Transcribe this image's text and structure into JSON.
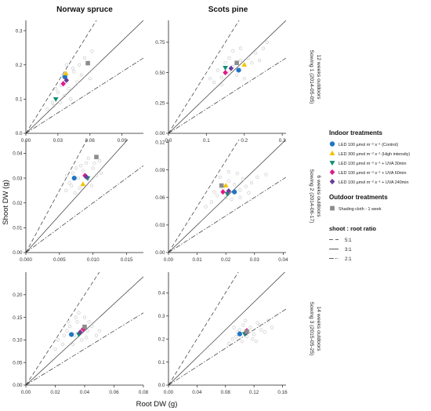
{
  "figure": {
    "column_titles": [
      "Norway spruce",
      "Scots pine"
    ],
    "row_titles": [
      {
        "line1": "Sowing 1 (2014-05-05)",
        "line2": "12 weeks outdoors"
      },
      {
        "line1": "Sowing 2 (2014-06-17)",
        "line2": "6 weeks outdoors"
      },
      {
        "line1": "Sowing 3 (2015-05-25)",
        "line2": "14 weeks outdoors"
      }
    ],
    "ylabel": "Shoot DW (g)",
    "xlabel": "Root DW (g)"
  },
  "legend": {
    "indoor_title": "Indoor treatments",
    "indoor_items": [
      {
        "label": "LED 100 µmol m⁻² s⁻¹ (Control)",
        "marker": "circle",
        "color": "#1f77c4"
      },
      {
        "label": "LED 300 µmol m⁻² s⁻¹ (High intensity)",
        "marker": "triangle-up",
        "color": "#f2c200"
      },
      {
        "label": "LED 100 µmol m⁻² s⁻¹ + UVA 30min",
        "marker": "triangle-down",
        "color": "#0f8f78"
      },
      {
        "label": "LED 100 µmol m⁻² s⁻¹ + UVA 60min",
        "marker": "diamond",
        "color": "#e0198a"
      },
      {
        "label": "LED 100 µmol m⁻² s⁻¹ + UVA 240min",
        "marker": "diamond",
        "color": "#6a3d9a"
      }
    ],
    "outdoor_title": "Outdoor treatments",
    "outdoor_items": [
      {
        "label": "Shading cloth - 1 week",
        "marker": "square",
        "color": "#8c8c8c"
      }
    ],
    "ratio_title": "shoot : root ratio",
    "ratio_items": [
      {
        "label": "5:1",
        "dash": "dashed"
      },
      {
        "label": "3:1",
        "dash": "solid"
      },
      {
        "label": "2:1",
        "dash": "dashdot"
      }
    ]
  },
  "chart_data": [
    {
      "type": "scatter",
      "panel": "Norway spruce / Sowing 1",
      "xlim": [
        0,
        0.11
      ],
      "ylim": [
        0,
        0.33
      ],
      "xticks": [
        "0.00",
        "0.03",
        "0.06",
        "0.09"
      ],
      "xtick_values": [
        0,
        0.03,
        0.06,
        0.09
      ],
      "yticks": [
        "0.0",
        "0.1",
        "0.2",
        "0.3"
      ],
      "ytick_values": [
        0,
        0.1,
        0.2,
        0.3
      ],
      "treatment_means": [
        {
          "x": 0.0365,
          "y": 0.165
        },
        {
          "x": 0.0375,
          "y": 0.175
        },
        {
          "x": 0.028,
          "y": 0.1
        },
        {
          "x": 0.035,
          "y": 0.145
        },
        {
          "x": 0.038,
          "y": 0.155
        },
        {
          "x": 0.058,
          "y": 0.205
        }
      ],
      "individual_points": [
        [
          0.02,
          0.07
        ],
        [
          0.025,
          0.09
        ],
        [
          0.03,
          0.12
        ],
        [
          0.033,
          0.14
        ],
        [
          0.04,
          0.13
        ],
        [
          0.045,
          0.18
        ],
        [
          0.05,
          0.2
        ],
        [
          0.055,
          0.22
        ],
        [
          0.042,
          0.1
        ],
        [
          0.036,
          0.11
        ],
        [
          0.028,
          0.13
        ],
        [
          0.06,
          0.16
        ],
        [
          0.048,
          0.15
        ],
        [
          0.032,
          0.09
        ],
        [
          0.052,
          0.17
        ],
        [
          0.038,
          0.2
        ],
        [
          0.044,
          0.19
        ],
        [
          0.026,
          0.08
        ],
        [
          0.062,
          0.24
        ],
        [
          0.035,
          0.17
        ]
      ]
    },
    {
      "type": "scatter",
      "panel": "Scots pine / Sowing 1",
      "xlim": [
        0,
        0.31
      ],
      "ylim": [
        0,
        0.93
      ],
      "xticks": [
        "0.0",
        "0.1",
        "0.2",
        "0.3"
      ],
      "xtick_values": [
        0,
        0.1,
        0.2,
        0.3
      ],
      "yticks": [
        "0.00",
        "0.25",
        "0.50",
        "0.75"
      ],
      "ytick_values": [
        0,
        0.25,
        0.5,
        0.75
      ],
      "treatment_means": [
        {
          "x": 0.185,
          "y": 0.52
        },
        {
          "x": 0.2,
          "y": 0.565
        },
        {
          "x": 0.15,
          "y": 0.54
        },
        {
          "x": 0.15,
          "y": 0.5
        },
        {
          "x": 0.165,
          "y": 0.535
        },
        {
          "x": 0.18,
          "y": 0.58
        }
      ],
      "individual_points": [
        [
          0.12,
          0.42
        ],
        [
          0.14,
          0.46
        ],
        [
          0.16,
          0.5
        ],
        [
          0.17,
          0.55
        ],
        [
          0.19,
          0.6
        ],
        [
          0.21,
          0.62
        ],
        [
          0.23,
          0.66
        ],
        [
          0.13,
          0.52
        ],
        [
          0.15,
          0.58
        ],
        [
          0.18,
          0.48
        ],
        [
          0.2,
          0.45
        ],
        [
          0.22,
          0.58
        ],
        [
          0.25,
          0.7
        ],
        [
          0.16,
          0.62
        ],
        [
          0.14,
          0.4
        ],
        [
          0.24,
          0.6
        ],
        [
          0.17,
          0.68
        ],
        [
          0.26,
          0.75
        ],
        [
          0.11,
          0.45
        ],
        [
          0.19,
          0.7
        ]
      ]
    },
    {
      "type": "scatter",
      "panel": "Norway spruce / Sowing 2",
      "xlim": [
        0,
        0.0175
      ],
      "ylim": [
        0,
        0.0455
      ],
      "xticks": [
        "0.000",
        "0.005",
        "0.010",
        "0.015"
      ],
      "xtick_values": [
        0,
        0.005,
        0.01,
        0.015
      ],
      "yticks": [
        "0.00",
        "0.01",
        "0.02",
        "0.03",
        "0.04"
      ],
      "ytick_values": [
        0,
        0.01,
        0.02,
        0.03,
        0.04
      ],
      "treatment_means": [
        {
          "x": 0.0072,
          "y": 0.03
        },
        {
          "x": 0.0085,
          "y": 0.0275
        },
        {
          "x": 0.0092,
          "y": 0.03
        },
        {
          "x": 0.0088,
          "y": 0.031
        },
        {
          "x": 0.009,
          "y": 0.0305
        },
        {
          "x": 0.0105,
          "y": 0.0385
        }
      ],
      "individual_points": [
        [
          0.006,
          0.025
        ],
        [
          0.0065,
          0.028
        ],
        [
          0.007,
          0.032
        ],
        [
          0.0075,
          0.034
        ],
        [
          0.008,
          0.026
        ],
        [
          0.0085,
          0.033
        ],
        [
          0.009,
          0.036
        ],
        [
          0.0095,
          0.029
        ],
        [
          0.01,
          0.034
        ],
        [
          0.0105,
          0.031
        ],
        [
          0.011,
          0.037
        ],
        [
          0.0078,
          0.03
        ],
        [
          0.0068,
          0.027
        ],
        [
          0.0098,
          0.027
        ],
        [
          0.0082,
          0.035
        ],
        [
          0.0112,
          0.032
        ],
        [
          0.0061,
          0.031
        ],
        [
          0.0093,
          0.038
        ],
        [
          0.0073,
          0.024
        ],
        [
          0.0102,
          0.036
        ]
      ]
    },
    {
      "type": "scatter",
      "panel": "Scots pine / Sowing 2",
      "xlim": [
        0,
        0.041
      ],
      "ylim": [
        0,
        0.123
      ],
      "xticks": [
        "0.00",
        "0.01",
        "0.02",
        "0.03",
        "0.04"
      ],
      "xtick_values": [
        0,
        0.01,
        0.02,
        0.03,
        0.04
      ],
      "yticks": [
        "0.00",
        "0.03",
        "0.06",
        "0.09",
        "0.12"
      ],
      "ytick_values": [
        0,
        0.03,
        0.06,
        0.09,
        0.12
      ],
      "treatment_means": [
        {
          "x": 0.023,
          "y": 0.066
        },
        {
          "x": 0.02,
          "y": 0.073
        },
        {
          "x": 0.0205,
          "y": 0.064
        },
        {
          "x": 0.019,
          "y": 0.066
        },
        {
          "x": 0.021,
          "y": 0.067
        },
        {
          "x": 0.0185,
          "y": 0.073
        }
      ],
      "individual_points": [
        [
          0.015,
          0.055
        ],
        [
          0.017,
          0.062
        ],
        [
          0.019,
          0.07
        ],
        [
          0.021,
          0.078
        ],
        [
          0.023,
          0.074
        ],
        [
          0.025,
          0.068
        ],
        [
          0.027,
          0.072
        ],
        [
          0.018,
          0.082
        ],
        [
          0.022,
          0.058
        ],
        [
          0.026,
          0.08
        ],
        [
          0.029,
          0.076
        ],
        [
          0.016,
          0.066
        ],
        [
          0.024,
          0.086
        ],
        [
          0.02,
          0.06
        ],
        [
          0.028,
          0.065
        ],
        [
          0.031,
          0.082
        ],
        [
          0.013,
          0.05
        ],
        [
          0.034,
          0.085
        ],
        [
          0.025,
          0.06
        ],
        [
          0.021,
          0.088
        ]
      ]
    },
    {
      "type": "scatter",
      "panel": "Norway spruce / Sowing 3",
      "xlim": [
        0,
        0.08
      ],
      "ylim": [
        0,
        0.25
      ],
      "xticks": [
        "0.00",
        "0.02",
        "0.04",
        "0.06",
        "0.08"
      ],
      "xtick_values": [
        0,
        0.02,
        0.04,
        0.06,
        0.08
      ],
      "yticks": [
        "0.00",
        "0.05",
        "0.10",
        "0.15",
        "0.20"
      ],
      "ytick_values": [
        0,
        0.05,
        0.1,
        0.15,
        0.2
      ],
      "treatment_means": [
        {
          "x": 0.031,
          "y": 0.112
        },
        {
          "x": 0.037,
          "y": 0.118
        },
        {
          "x": 0.036,
          "y": 0.112
        },
        {
          "x": 0.039,
          "y": 0.124
        },
        {
          "x": 0.037,
          "y": 0.117
        },
        {
          "x": 0.04,
          "y": 0.129
        }
      ],
      "individual_points": [
        [
          0.02,
          0.08
        ],
        [
          0.022,
          0.1
        ],
        [
          0.025,
          0.09
        ],
        [
          0.028,
          0.12
        ],
        [
          0.03,
          0.13
        ],
        [
          0.033,
          0.11
        ],
        [
          0.035,
          0.14
        ],
        [
          0.038,
          0.1
        ],
        [
          0.04,
          0.15
        ],
        [
          0.042,
          0.12
        ],
        [
          0.045,
          0.13
        ],
        [
          0.048,
          0.11
        ],
        [
          0.026,
          0.11
        ],
        [
          0.032,
          0.09
        ],
        [
          0.034,
          0.15
        ],
        [
          0.043,
          0.14
        ],
        [
          0.05,
          0.12
        ],
        [
          0.036,
          0.16
        ],
        [
          0.029,
          0.14
        ],
        [
          0.041,
          0.105
        ]
      ]
    },
    {
      "type": "scatter",
      "panel": "Scots pine / Sowing 3",
      "xlim": [
        0,
        0.165
      ],
      "ylim": [
        0,
        0.49
      ],
      "xticks": [
        "0.00",
        "0.04",
        "0.08",
        "0.12",
        "0.16"
      ],
      "xtick_values": [
        0,
        0.04,
        0.08,
        0.12,
        0.16
      ],
      "yticks": [
        "0.0",
        "0.1",
        "0.2",
        "0.3",
        "0.4"
      ],
      "ytick_values": [
        0,
        0.1,
        0.2,
        0.3,
        0.4
      ],
      "treatment_means": [
        {
          "x": 0.1,
          "y": 0.222
        },
        {
          "x": 0.108,
          "y": 0.232
        },
        {
          "x": 0.107,
          "y": 0.222
        },
        {
          "x": 0.11,
          "y": 0.236
        },
        {
          "x": 0.109,
          "y": 0.228
        },
        {
          "x": 0.11,
          "y": 0.232
        }
      ],
      "individual_points": [
        [
          0.085,
          0.18
        ],
        [
          0.09,
          0.2
        ],
        [
          0.095,
          0.21
        ],
        [
          0.1,
          0.24
        ],
        [
          0.105,
          0.26
        ],
        [
          0.11,
          0.21
        ],
        [
          0.115,
          0.25
        ],
        [
          0.12,
          0.22
        ],
        [
          0.125,
          0.27
        ],
        [
          0.13,
          0.24
        ],
        [
          0.135,
          0.23
        ],
        [
          0.14,
          0.28
        ],
        [
          0.097,
          0.23
        ],
        [
          0.103,
          0.19
        ],
        [
          0.118,
          0.2
        ],
        [
          0.128,
          0.26
        ],
        [
          0.092,
          0.25
        ],
        [
          0.145,
          0.25
        ],
        [
          0.108,
          0.28
        ],
        [
          0.123,
          0.19
        ]
      ]
    }
  ]
}
